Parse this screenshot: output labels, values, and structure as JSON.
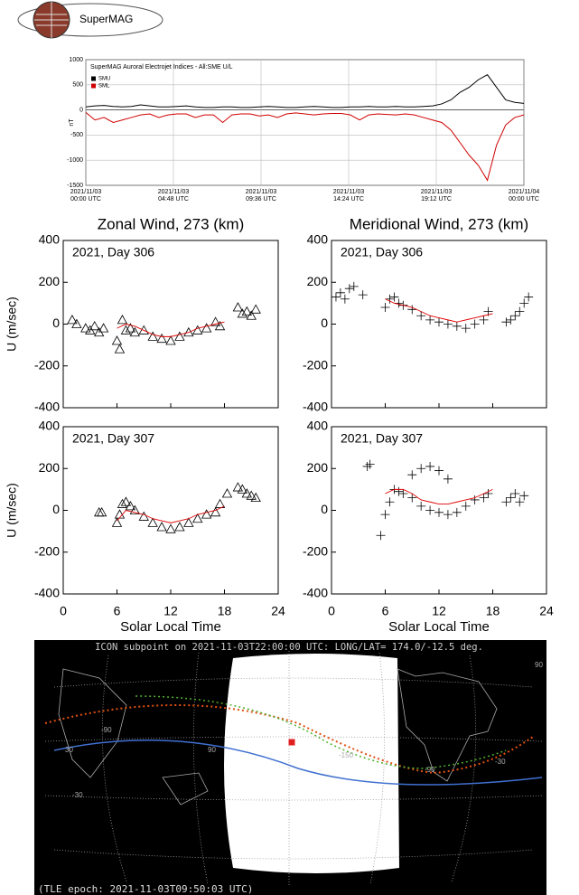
{
  "header": {
    "logo": "SuperMAG"
  },
  "chart_data": [
    {
      "type": "line",
      "title": "SuperMAG Auroral Electrojet Indices - All:SME U/L",
      "ylabel": "nT",
      "xlim": [
        0,
        24
      ],
      "ylim": [
        -1500,
        1000
      ],
      "yticks": [
        -1500,
        -1000,
        -500,
        0,
        500,
        1000
      ],
      "xticks": [
        {
          "value": 0,
          "label": "2021/11/03\n00:00 UTC"
        },
        {
          "value": 4.8,
          "label": "2021/11/03\n04:48 UTC"
        },
        {
          "value": 9.6,
          "label": "2021/11/03\n09:36 UTC"
        },
        {
          "value": 14.4,
          "label": "2021/11/03\n14:24 UTC"
        },
        {
          "value": 19.2,
          "label": "2021/11/03\n19:12 UTC"
        },
        {
          "value": 24,
          "label": "2021/11/04\n00:00 UTC"
        }
      ],
      "grid": true,
      "legend": "upper left",
      "x": [
        0,
        0.5,
        1,
        1.5,
        2,
        2.5,
        3,
        3.5,
        4,
        4.5,
        5,
        5.5,
        6,
        6.5,
        7,
        7.5,
        8,
        8.5,
        9,
        9.5,
        10,
        10.5,
        11,
        11.5,
        12,
        12.5,
        13,
        13.5,
        14,
        14.5,
        15,
        15.5,
        16,
        16.5,
        17,
        17.5,
        18,
        18.5,
        19,
        19.5,
        20,
        20.5,
        21,
        21.5,
        22,
        22.5,
        23,
        23.5,
        24
      ],
      "series": [
        {
          "name": "SMU",
          "color": "#000000",
          "values": [
            60,
            80,
            90,
            70,
            60,
            70,
            100,
            80,
            60,
            60,
            70,
            80,
            60,
            50,
            50,
            60,
            60,
            50,
            50,
            60,
            70,
            60,
            50,
            50,
            60,
            70,
            60,
            50,
            50,
            60,
            60,
            70,
            60,
            60,
            70,
            60,
            60,
            70,
            80,
            120,
            200,
            350,
            450,
            600,
            700,
            450,
            200,
            150,
            130
          ]
        },
        {
          "name": "SML",
          "color": "#d00000",
          "values": [
            -50,
            -200,
            -150,
            -250,
            -200,
            -150,
            -100,
            -80,
            -150,
            -100,
            -80,
            -80,
            -150,
            -100,
            -100,
            -250,
            -100,
            -80,
            -80,
            -120,
            -100,
            -150,
            -80,
            -60,
            -80,
            -100,
            -80,
            -70,
            -70,
            -100,
            -200,
            -100,
            -80,
            -90,
            -100,
            -80,
            -100,
            -150,
            -200,
            -250,
            -400,
            -650,
            -900,
            -1100,
            -1400,
            -700,
            -300,
            -150,
            -100
          ]
        }
      ]
    },
    {
      "type": "scatter",
      "title": "Zonal Wind, 273 (km)",
      "annotation": "2021, Day 306",
      "ylabel": "U (m/sec)",
      "xlim": [
        0,
        24
      ],
      "xticks": [
        0,
        6,
        12,
        18,
        24
      ],
      "show_xtick_labels": false,
      "ylim": [
        -400,
        400
      ],
      "yticks": [
        -400,
        -200,
        0,
        200,
        400
      ],
      "series": [
        {
          "marker": "triangle",
          "color": "#000000",
          "x": [
            1,
            1.5,
            2.5,
            3,
            3.5,
            4,
            4.5,
            6,
            6.3,
            6.6,
            7,
            7.5,
            8,
            9,
            10,
            11,
            12,
            13,
            14,
            15,
            16,
            17,
            17.5,
            19.5,
            20,
            20.5,
            21,
            21.5
          ],
          "values": [
            20,
            0,
            -20,
            -30,
            -10,
            -40,
            -20,
            -80,
            -120,
            20,
            -30,
            -20,
            -40,
            -30,
            -60,
            -70,
            -80,
            -60,
            -40,
            -30,
            -20,
            10,
            -10,
            80,
            50,
            60,
            40,
            70
          ]
        },
        {
          "marker": "line",
          "color": "#e00000",
          "x": [
            6,
            7,
            8,
            9,
            10,
            11,
            12,
            13,
            14,
            15,
            16,
            17,
            18
          ],
          "values": [
            -20,
            0,
            -10,
            -30,
            -50,
            -60,
            -60,
            -50,
            -40,
            -20,
            -10,
            0,
            10
          ]
        }
      ]
    },
    {
      "type": "scatter",
      "title": "Meridional Wind, 273 (km)",
      "annotation": "2021, Day 306",
      "xlim": [
        0,
        24
      ],
      "xticks": [
        0,
        6,
        12,
        18,
        24
      ],
      "show_xtick_labels": false,
      "ylim": [
        -400,
        400
      ],
      "yticks": [
        -400,
        -200,
        0,
        200,
        400
      ],
      "series": [
        {
          "marker": "plus",
          "color": "#000000",
          "x": [
            0.5,
            1,
            1.5,
            2,
            2.5,
            3.5,
            6,
            6.5,
            7,
            7.5,
            8,
            9,
            10,
            11,
            12,
            13,
            14,
            15,
            16,
            17,
            17.5,
            19.5,
            20,
            20.5,
            21,
            21.5,
            22
          ],
          "values": [
            130,
            150,
            120,
            170,
            180,
            140,
            80,
            120,
            130,
            100,
            90,
            70,
            40,
            20,
            10,
            0,
            -10,
            -20,
            0,
            20,
            60,
            10,
            20,
            40,
            60,
            100,
            130
          ]
        },
        {
          "marker": "line",
          "color": "#e00000",
          "x": [
            6,
            7,
            8,
            9,
            10,
            11,
            12,
            13,
            14,
            15,
            16,
            17,
            18
          ],
          "values": [
            120,
            100,
            90,
            80,
            60,
            40,
            30,
            20,
            10,
            20,
            30,
            40,
            50
          ]
        }
      ]
    },
    {
      "type": "scatter",
      "annotation": "2021, Day 307",
      "ylabel": "U (m/sec)",
      "xlabel": "Solar Local Time",
      "xlim": [
        0,
        24
      ],
      "xticks": [
        0,
        6,
        12,
        18,
        24
      ],
      "show_xtick_labels": true,
      "ylim": [
        -400,
        400
      ],
      "yticks": [
        -400,
        -200,
        0,
        200,
        400
      ],
      "series": [
        {
          "marker": "triangle",
          "color": "#000000",
          "x": [
            4,
            4.3,
            6,
            6.3,
            6.6,
            7,
            7.5,
            8,
            9,
            10,
            11,
            12,
            13,
            14,
            15,
            16,
            17,
            17.5,
            18.3,
            19.5,
            20,
            20.5,
            21,
            21.5
          ],
          "values": [
            -10,
            -10,
            -60,
            -20,
            30,
            40,
            20,
            0,
            -30,
            -60,
            -80,
            -90,
            -80,
            -60,
            -40,
            -20,
            -10,
            30,
            80,
            110,
            100,
            80,
            70,
            60
          ]
        },
        {
          "marker": "line",
          "color": "#e00000",
          "x": [
            6,
            7,
            8,
            9,
            10,
            11,
            12,
            13,
            14,
            15,
            16,
            17,
            18
          ],
          "values": [
            -50,
            0,
            -10,
            -20,
            -40,
            -50,
            -60,
            -50,
            -40,
            -20,
            -10,
            0,
            20
          ]
        }
      ]
    },
    {
      "type": "scatter",
      "annotation": "2021, Day 307",
      "xlabel": "Solar Local Time",
      "xlim": [
        0,
        24
      ],
      "xticks": [
        0,
        6,
        12,
        18,
        24
      ],
      "show_xtick_labels": true,
      "ylim": [
        -400,
        400
      ],
      "yticks": [
        -400,
        -200,
        0,
        200,
        400
      ],
      "series": [
        {
          "marker": "plus",
          "color": "#000000",
          "x": [
            4,
            4.3,
            5.5,
            6,
            6.5,
            7,
            7.5,
            8,
            9,
            9,
            10,
            10,
            11,
            11,
            12,
            12,
            13,
            13,
            14,
            15,
            16,
            17,
            17.5,
            19.5,
            20,
            20.5,
            21,
            21.5
          ],
          "values": [
            210,
            220,
            -120,
            -20,
            40,
            100,
            90,
            80,
            60,
            170,
            20,
            200,
            0,
            210,
            -10,
            190,
            -20,
            150,
            -10,
            20,
            50,
            60,
            80,
            40,
            60,
            80,
            40,
            70
          ]
        },
        {
          "marker": "line",
          "color": "#e00000",
          "x": [
            6,
            7,
            8,
            9,
            10,
            11,
            12,
            13,
            14,
            15,
            16,
            17,
            18
          ],
          "values": [
            80,
            100,
            100,
            80,
            50,
            40,
            30,
            30,
            40,
            50,
            60,
            80,
            100
          ]
        }
      ]
    }
  ],
  "map": {
    "title": "ICON subpoint on 2021-11-03T22:00:00 UTC: LONG/LAT= 174.0/-12.5 deg.",
    "footer": "(TLE epoch: 2021-11-03T09:50:03 UTC)",
    "labels": [
      "90",
      "-150",
      "-90",
      "-30",
      "30",
      "-90",
      "90",
      "-30"
    ]
  }
}
